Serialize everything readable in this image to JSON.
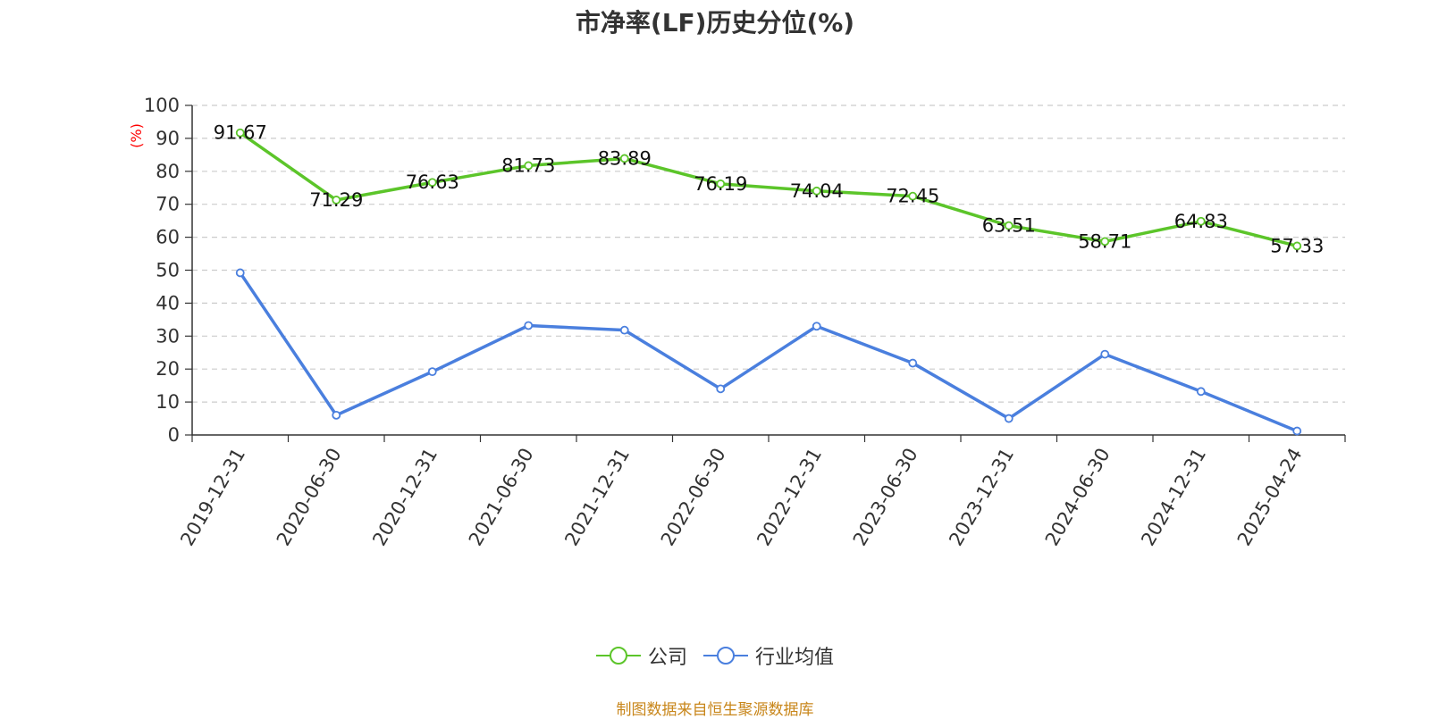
{
  "chart_data": {
    "type": "line",
    "title": "市净率(LF)历史分位(%)",
    "ylabel": "(%)",
    "xlabel": "",
    "ylim": [
      0,
      100
    ],
    "yticks": [
      0,
      10,
      20,
      30,
      40,
      50,
      60,
      70,
      80,
      90,
      100
    ],
    "grid": true,
    "legend_position": "bottom",
    "categories": [
      "2019-12-31",
      "2020-06-30",
      "2020-12-31",
      "2021-06-30",
      "2021-12-31",
      "2022-06-30",
      "2022-12-31",
      "2023-06-30",
      "2023-12-31",
      "2024-06-30",
      "2024-12-31",
      "2025-04-24"
    ],
    "series": [
      {
        "name": "公司",
        "color": "#5cc52a",
        "values": [
          91.67,
          71.29,
          76.63,
          81.73,
          83.89,
          76.19,
          74.04,
          72.45,
          63.51,
          58.71,
          64.83,
          57.33
        ],
        "labels": [
          "91.67",
          "71.29",
          "76.63",
          "81.73",
          "83.89",
          "76.19",
          "74.04",
          "72.45",
          "63.51",
          "58.71",
          "64.83",
          "57.33"
        ]
      },
      {
        "name": "行业均值",
        "color": "#4a7fde",
        "values": [
          49.2,
          6.0,
          19.2,
          33.2,
          31.8,
          14.0,
          33.0,
          21.8,
          5.0,
          24.5,
          13.2,
          1.2
        ]
      }
    ]
  },
  "source_note": "制图数据来自恒生聚源数据库"
}
